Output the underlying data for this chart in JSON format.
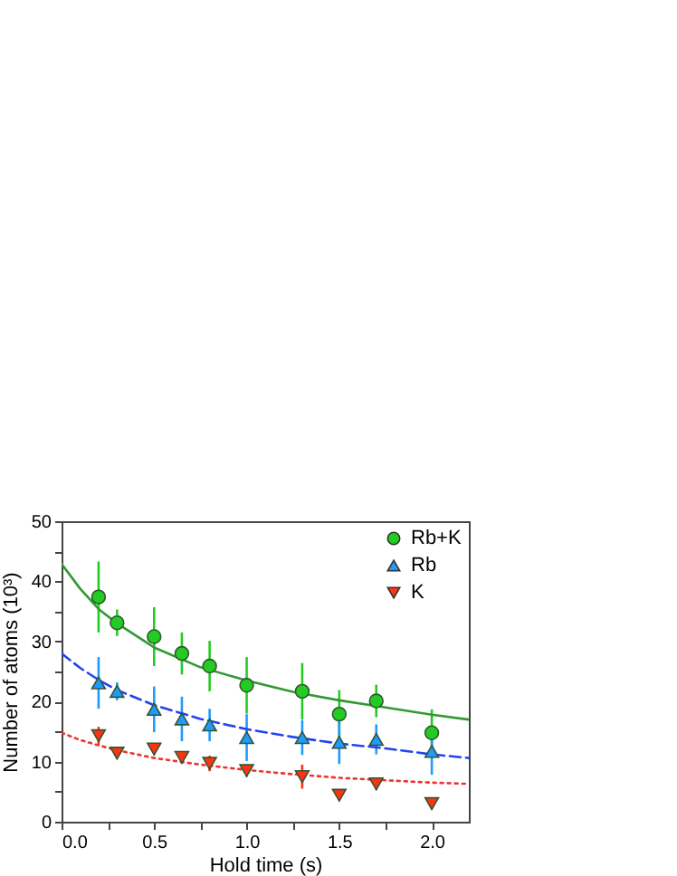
{
  "chart_data": {
    "type": "scatter",
    "xlabel": "Hold time (s)",
    "ylabel": "Number of atoms (10³)",
    "xlim": [
      0,
      2.2
    ],
    "ylim": [
      0,
      50
    ],
    "xticks": [
      {
        "value": 0,
        "label": "0.0"
      },
      {
        "value": 0.25,
        "label": null
      },
      {
        "value": 0.5,
        "label": "0.5"
      },
      {
        "value": 0.75,
        "label": null
      },
      {
        "value": 1,
        "label": "1.0"
      },
      {
        "value": 1.25,
        "label": null
      },
      {
        "value": 1.5,
        "label": "1.5"
      },
      {
        "value": 1.75,
        "label": null
      },
      {
        "value": 2,
        "label": "2.0"
      }
    ],
    "yticks": [
      0,
      {
        "value": 5,
        "label": null
      },
      10,
      {
        "value": 15,
        "label": null
      },
      20,
      {
        "value": 25,
        "label": null
      },
      30,
      {
        "value": 35,
        "label": null
      },
      40,
      {
        "value": 45,
        "label": null
      },
      50
    ],
    "grid": false,
    "legend": "top right",
    "x": [
      0.2,
      0.3,
      0.5,
      0.65,
      0.8,
      1.0,
      1.3,
      1.5,
      1.7,
      2.0
    ],
    "series": [
      {
        "name": "Rb+K",
        "type": "scatter",
        "marker": "circle",
        "color": "#22cc22",
        "values": [
          37.4,
          33.1,
          30.8,
          28,
          25.9,
          22.7,
          21.7,
          17.9,
          20.1,
          14.8
        ],
        "errors": [
          5.9,
          2.2,
          4.9,
          3.5,
          4.2,
          4.7,
          4.7,
          4,
          2.7,
          3.9
        ]
      },
      {
        "name": "Rb",
        "type": "scatter",
        "marker": "triangle",
        "color": "#1e9bff",
        "values": [
          23.1,
          21.7,
          18.7,
          17.1,
          16.1,
          14,
          14,
          13.2,
          13.7,
          11.7
        ],
        "errors": [
          4.3,
          1.5,
          3.8,
          3.7,
          2.7,
          3.9,
          2.9,
          3.6,
          2.5,
          3.9
        ]
      },
      {
        "name": "K",
        "type": "scatter",
        "marker": "triangle-down",
        "color": "#ff3311",
        "values": [
          14.3,
          11.4,
          12.1,
          10.7,
          9.7,
          8.5,
          7.5,
          4.4,
          6.3,
          3
        ],
        "errors": [
          1.5,
          0.8,
          1,
          1,
          1.3,
          1,
          2,
          0.8,
          1,
          0.8
        ]
      },
      {
        "type": "line",
        "line_style": "solid",
        "color": "#339933",
        "x": [
          0,
          0.1,
          0.2,
          0.3,
          0.5,
          0.75,
          1,
          1.25,
          1.5,
          1.75,
          2,
          2.2
        ],
        "values": [
          42.9,
          38.8,
          35.4,
          33,
          29,
          25.7,
          23.5,
          21.6,
          20.2,
          19,
          17.8,
          17
        ]
      },
      {
        "type": "line",
        "line_style": "dashed",
        "color": "#2244ee",
        "x": [
          0,
          0.1,
          0.2,
          0.3,
          0.5,
          0.75,
          1,
          1.25,
          1.5,
          1.75,
          2,
          2.2
        ],
        "values": [
          28,
          25.6,
          23.6,
          21.9,
          19.4,
          17.1,
          15.4,
          14.1,
          13,
          12.2,
          11.2,
          10.6
        ]
      },
      {
        "type": "line",
        "line_style": "dotted",
        "color": "#ee3333",
        "x": [
          0,
          0.1,
          0.2,
          0.3,
          0.5,
          0.75,
          1,
          1.25,
          1.5,
          1.75,
          2,
          2.2
        ],
        "values": [
          14.8,
          13.6,
          12.7,
          11.9,
          10.6,
          9.5,
          8.6,
          7.9,
          7.3,
          6.9,
          6.5,
          6.3
        ]
      }
    ]
  }
}
